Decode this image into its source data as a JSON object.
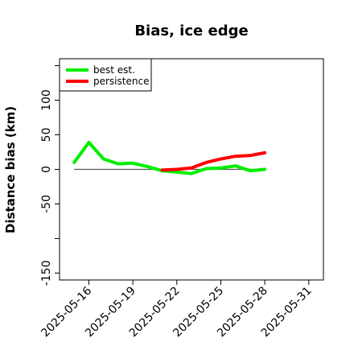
{
  "chart_data": {
    "type": "line",
    "title": "Bias, ice edge",
    "xlabel": "",
    "ylabel": "Distance bias (km)",
    "ylim": [
      -160,
      160
    ],
    "xlim": [
      "2025-05-14",
      "2025-06-01"
    ],
    "y_ticks": [
      -150,
      -50,
      0,
      50,
      100
    ],
    "y_tick_marks": [
      -150,
      -100,
      -50,
      0,
      50,
      100,
      150
    ],
    "x_ticks": [
      "2025-05-16",
      "2025-05-19",
      "2025-05-22",
      "2025-05-25",
      "2025-05-28",
      "2025-05-31"
    ],
    "x_minor_ticks": [
      "2025-05-16",
      "2025-05-19",
      "2025-05-22",
      "2025-05-25",
      "2025-05-28",
      "2025-05-31"
    ],
    "reference_line": {
      "y": 0,
      "from": "2025-05-15",
      "to": "2025-05-28",
      "color": "#555555"
    },
    "legend": {
      "position": "top-left"
    },
    "series": [
      {
        "name": "best est.",
        "color": "#00ee00",
        "x": [
          "2025-05-15",
          "2025-05-16",
          "2025-05-17",
          "2025-05-18",
          "2025-05-19",
          "2025-05-20",
          "2025-05-21",
          "2025-05-22",
          "2025-05-23",
          "2025-05-24",
          "2025-05-25",
          "2025-05-26",
          "2025-05-27",
          "2025-05-28"
        ],
        "values": [
          10,
          39,
          15,
          8,
          9,
          4,
          -2,
          -4,
          -6,
          1,
          2,
          5,
          -2,
          0
        ]
      },
      {
        "name": "persistence",
        "color": "#ff0000",
        "x": [
          "2025-05-21",
          "2025-05-22",
          "2025-05-23",
          "2025-05-24",
          "2025-05-25",
          "2025-05-26",
          "2025-05-27",
          "2025-05-28"
        ],
        "values": [
          -1,
          0,
          2,
          10,
          15,
          19,
          20,
          24
        ]
      }
    ]
  }
}
